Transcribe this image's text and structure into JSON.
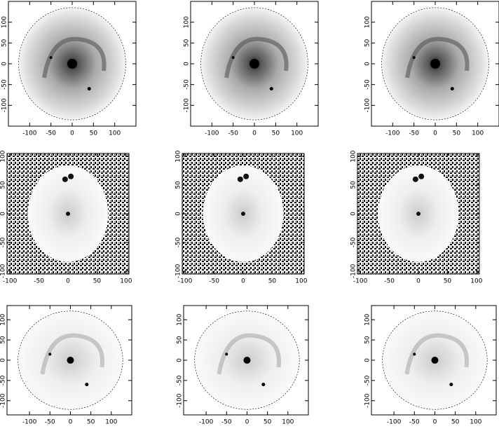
{
  "chart_data": [
    {
      "type": "image",
      "xlim": [
        -150,
        150
      ],
      "ylim": [
        -150,
        150
      ],
      "xticks": [
        -100,
        -50,
        0,
        50,
        100
      ],
      "yticks": [
        -100,
        -50,
        0,
        50,
        100
      ]
    },
    {
      "type": "image",
      "xlim": [
        -150,
        150
      ],
      "ylim": [
        -150,
        150
      ],
      "xticks": [
        -100,
        -50,
        0,
        50,
        100
      ],
      "yticks": [
        -100,
        -50,
        0,
        50,
        100
      ]
    },
    {
      "type": "image",
      "xlim": [
        -150,
        150
      ],
      "ylim": [
        -150,
        150
      ],
      "xticks": [
        -100,
        -50,
        0,
        50,
        100
      ],
      "yticks": [
        -100,
        -50,
        0,
        50,
        100
      ]
    },
    {
      "type": "image",
      "xlim": [
        -105,
        105
      ],
      "ylim": [
        -105,
        105
      ],
      "xticks": [
        -100,
        -50,
        0,
        50,
        100
      ],
      "yticks": [
        -100,
        -50,
        0,
        50,
        100
      ]
    },
    {
      "type": "image",
      "xlim": [
        -105,
        105
      ],
      "ylim": [
        -105,
        105
      ],
      "xticks": [
        -100,
        -50,
        0,
        50,
        100
      ],
      "yticks": [
        -100,
        -50,
        0,
        50,
        100
      ]
    },
    {
      "type": "image",
      "xlim": [
        -105,
        105
      ],
      "ylim": [
        -105,
        105
      ],
      "xticks": [
        -100,
        -50,
        0,
        50,
        100
      ],
      "yticks": [
        -100,
        -50,
        0,
        50,
        100
      ]
    },
    {
      "type": "image",
      "xlim": [
        -155,
        150
      ],
      "ylim": [
        -135,
        135
      ],
      "xticks": [
        -100,
        -50,
        0,
        50,
        100
      ],
      "yticks": [
        -100,
        -50,
        0,
        50,
        100
      ]
    },
    {
      "type": "image",
      "xlim": [
        -155,
        150
      ],
      "ylim": [
        -135,
        135
      ],
      "xticks": [
        -100,
        -50,
        0,
        50,
        100
      ],
      "yticks": [
        -100,
        -50,
        0,
        50,
        100
      ]
    },
    {
      "type": "image",
      "xlim": [
        -155,
        150
      ],
      "ylim": [
        -135,
        135
      ],
      "xticks": [
        -100,
        -50,
        0,
        50,
        100
      ],
      "yticks": [
        -100,
        -50,
        0,
        50,
        100
      ]
    }
  ]
}
